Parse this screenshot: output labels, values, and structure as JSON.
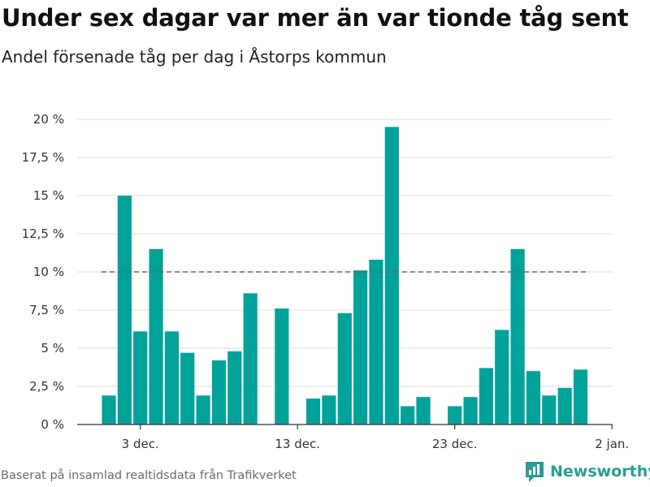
{
  "header": {
    "title": "Under sex dagar var mer än var tionde tåg sent",
    "subtitle": "Andel försenade tåg per dag i Åstorps kommun"
  },
  "footer": {
    "source": "Baserat på insamlad realtidsdata från Trafikverket",
    "brand": "Newsworthy"
  },
  "colors": {
    "bar": "#00a29a",
    "grid": "#dddddd",
    "reference_line": "#666666",
    "brand": "#2a9d91"
  },
  "chart_data": {
    "type": "bar",
    "title": "Under sex dagar var mer än var tionde tåg sent",
    "subtitle": "Andel försenade tåg per dag i Åstorps kommun",
    "xlabel": "",
    "ylabel": "",
    "x_unit": "day",
    "x_start": "2023-12-01",
    "dates": [
      "2023-12-01",
      "2023-12-02",
      "2023-12-03",
      "2023-12-04",
      "2023-12-05",
      "2023-12-06",
      "2023-12-07",
      "2023-12-08",
      "2023-12-09",
      "2023-12-10",
      "2023-12-11",
      "2023-12-12",
      "2023-12-13",
      "2023-12-14",
      "2023-12-15",
      "2023-12-16",
      "2023-12-17",
      "2023-12-18",
      "2023-12-19",
      "2023-12-20",
      "2023-12-21",
      "2023-12-22",
      "2023-12-23",
      "2023-12-24",
      "2023-12-25",
      "2023-12-26",
      "2023-12-27",
      "2023-12-28",
      "2023-12-29",
      "2023-12-30",
      "2023-12-31"
    ],
    "values": [
      1.9,
      15.0,
      6.1,
      11.5,
      6.1,
      4.7,
      1.9,
      4.2,
      4.8,
      8.6,
      null,
      7.6,
      null,
      1.7,
      1.9,
      7.3,
      10.1,
      10.8,
      19.5,
      1.2,
      1.8,
      null,
      1.2,
      1.8,
      3.7,
      6.2,
      11.5,
      3.5,
      1.9,
      2.4,
      3.6
    ],
    "ylim": [
      0,
      20
    ],
    "yticks": [
      0,
      2.5,
      5,
      7.5,
      10,
      12.5,
      15,
      17.5,
      20
    ],
    "ytick_labels": [
      "0 %",
      "2,5 %",
      "5 %",
      "7,5 %",
      "10 %",
      "12,5 %",
      "15 %",
      "17,5 %",
      "20 %"
    ],
    "xticks": [
      {
        "date": "2023-12-03",
        "label": "3 dec."
      },
      {
        "date": "2023-12-13",
        "label": "13 dec."
      },
      {
        "date": "2023-12-23",
        "label": "23 dec."
      },
      {
        "date": "2024-01-02",
        "label": "2 jan."
      }
    ],
    "reference_line": {
      "y": 10,
      "style": "dashed"
    },
    "grid": true,
    "legend": false
  }
}
